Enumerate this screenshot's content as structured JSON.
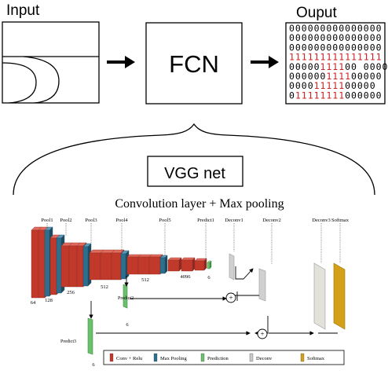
{
  "top": {
    "input_label": "Input",
    "fcn_label": "FCN",
    "output_label": "Ouput",
    "matrix_rows": [
      "000000000000000",
      "000000000000000",
      "000000000000000",
      "111111111111111",
      "00000111100 0000",
      "000000111100000",
      "00001111100000",
      "011111111000000"
    ],
    "matrix_red_ranges": [
      [],
      [],
      [],
      [
        [
          0,
          14
        ]
      ],
      [
        [
          5,
          8
        ]
      ],
      [
        [
          6,
          9
        ]
      ],
      [
        [
          4,
          8
        ]
      ],
      [
        [
          1,
          8
        ]
      ]
    ],
    "colors": {
      "red": "#cc2222",
      "black": "#000000"
    }
  },
  "vgg": {
    "box_label": "VGG net",
    "subtitle": "Convolution layer + Max pooling",
    "top_labels": [
      "Pool1",
      "Pool2",
      "Pool3",
      "Pool4",
      "Pool5",
      "Predict1",
      "Deconv1",
      "Deconv2",
      "Deconv3",
      "Softmax"
    ],
    "dim_labels": [
      "64",
      "128",
      "256",
      "512",
      "512",
      "4096",
      "6",
      "6",
      "6"
    ],
    "predict2_label": "Predict2",
    "predict3_label": "Predict3",
    "plus_symbol": "+",
    "legend": [
      {
        "label": "Conv + Relu",
        "color": "#c0392b",
        "icon": "conv-relu-swatch"
      },
      {
        "label": "Max Pooling",
        "color": "#2e6f8e",
        "icon": "max-pooling-swatch"
      },
      {
        "label": "Prediction",
        "color": "#6cbf6c",
        "icon": "prediction-swatch"
      },
      {
        "label": "Deconv",
        "color": "#c9c9c9",
        "icon": "deconv-swatch"
      },
      {
        "label": "Softmax",
        "color": "#d4a017",
        "icon": "softmax-swatch"
      }
    ]
  }
}
